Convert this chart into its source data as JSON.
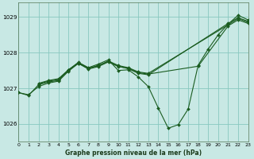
{
  "title": "Graphe pression niveau de la mer (hPa)",
  "background_color": "#c8e8e4",
  "grid_color": "#88c8c0",
  "line_color": "#1a5c20",
  "xlim": [
    0,
    23
  ],
  "ylim": [
    1025.5,
    1029.4
  ],
  "yticks": [
    1026,
    1027,
    1028,
    1029
  ],
  "xticks": [
    0,
    1,
    2,
    3,
    4,
    5,
    6,
    7,
    8,
    9,
    10,
    11,
    12,
    13,
    14,
    15,
    16,
    17,
    18,
    19,
    20,
    21,
    22,
    23
  ],
  "series1_x": [
    0,
    1,
    2,
    3,
    4,
    5,
    6,
    7,
    8,
    9,
    10,
    11,
    12,
    13,
    14,
    15,
    16,
    17,
    18,
    19,
    20,
    21,
    22,
    23
  ],
  "series1_y": [
    1026.88,
    1026.8,
    1027.1,
    1027.18,
    1027.22,
    1027.52,
    1027.73,
    1027.58,
    1027.68,
    1027.8,
    1027.5,
    1027.52,
    1027.32,
    1027.05,
    1026.45,
    1025.88,
    1025.98,
    1026.42,
    1027.65,
    1028.1,
    1028.5,
    1028.8,
    1029.05,
    1028.92
  ],
  "series2_x": [
    0,
    1,
    2,
    3,
    4,
    5,
    6,
    7,
    8,
    9,
    10,
    11,
    12,
    13,
    21,
    22,
    23
  ],
  "series2_y": [
    1026.88,
    1026.82,
    1027.05,
    1027.15,
    1027.2,
    1027.48,
    1027.7,
    1027.55,
    1027.65,
    1027.75,
    1027.62,
    1027.55,
    1027.42,
    1027.38,
    1028.82,
    1028.98,
    1028.88
  ],
  "series3_x": [
    2,
    3,
    4,
    5,
    6,
    7,
    8,
    9,
    10,
    11,
    12,
    13,
    21,
    22,
    23
  ],
  "series3_y": [
    1027.12,
    1027.2,
    1027.25,
    1027.5,
    1027.72,
    1027.57,
    1027.63,
    1027.77,
    1027.64,
    1027.58,
    1027.46,
    1027.42,
    1028.78,
    1028.96,
    1028.85
  ],
  "series4_x": [
    2,
    3,
    4,
    5,
    6,
    7,
    8,
    9,
    10,
    11,
    12,
    13,
    18,
    21,
    22,
    23
  ],
  "series4_y": [
    1027.14,
    1027.22,
    1027.27,
    1027.52,
    1027.7,
    1027.54,
    1027.61,
    1027.74,
    1027.61,
    1027.56,
    1027.44,
    1027.4,
    1027.62,
    1028.75,
    1028.92,
    1028.82
  ]
}
